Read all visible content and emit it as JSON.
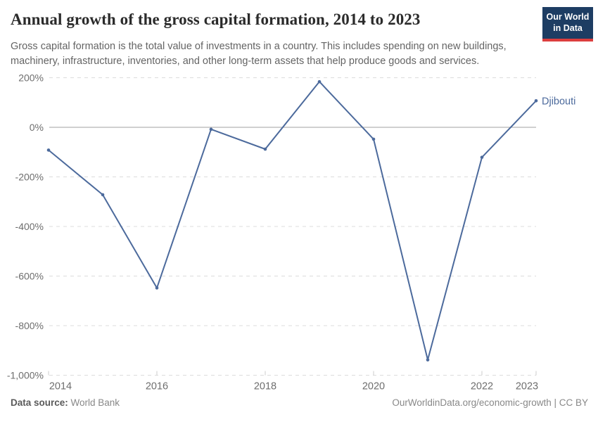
{
  "header": {
    "title": "Annual growth of the gross capital formation, 2014 to 2023",
    "logo": {
      "line1": "Our World",
      "line2": "in Data",
      "bg_color": "#1d3d63",
      "accent_color": "#dc3e3e"
    }
  },
  "subtitle": "Gross capital formation is the total value of investments in a country. This includes spending on new buildings, machinery, infrastructure, inventories, and other long-term assets that help produce goods and services.",
  "chart_data": {
    "type": "line",
    "title": "Annual growth of the gross capital formation, 2014 to 2023",
    "x": [
      2014,
      2015,
      2016,
      2017,
      2018,
      2019,
      2020,
      2021,
      2022,
      2023
    ],
    "series": [
      {
        "name": "Djibouti",
        "color": "#4C6A9C",
        "values": [
          -92,
          -272,
          -648,
          -8,
          -88,
          184,
          -48,
          -938,
          -121,
          107
        ]
      }
    ],
    "xlabel": "",
    "ylabel": "",
    "ylim": [
      -1000,
      200
    ],
    "xlim": [
      2014,
      2023
    ],
    "grid": "horizontal-dashed",
    "zero_line": true,
    "legend_position": "end-of-line-label",
    "y_ticks": [
      {
        "value": 200,
        "label": "200%"
      },
      {
        "value": 0,
        "label": "0%"
      },
      {
        "value": -200,
        "label": "-200%"
      },
      {
        "value": -400,
        "label": "-400%"
      },
      {
        "value": -600,
        "label": "-600%"
      },
      {
        "value": -800,
        "label": "-800%"
      },
      {
        "value": -1000,
        "label": "-1,000%"
      }
    ],
    "x_ticks": [
      {
        "value": 2014,
        "label": "2014",
        "label_dx": 17
      },
      {
        "value": 2016,
        "label": "2016",
        "label_dx": 0
      },
      {
        "value": 2018,
        "label": "2018",
        "label_dx": 0
      },
      {
        "value": 2020,
        "label": "2020",
        "label_dx": 0
      },
      {
        "value": 2022,
        "label": "2022",
        "label_dx": 0
      },
      {
        "value": 2023,
        "label": "2023",
        "label_dx": -13
      }
    ],
    "colors": {
      "grid": "#dcdcdc",
      "zero_line": "#a1a1a1",
      "tick": "#cccccc",
      "axis_text": "#6e6e6e"
    }
  },
  "footer": {
    "source_label": "Data source:",
    "source_value": " World Bank",
    "link": "OurWorldinData.org/economic-growth",
    "divider": " | ",
    "license": "CC BY"
  }
}
